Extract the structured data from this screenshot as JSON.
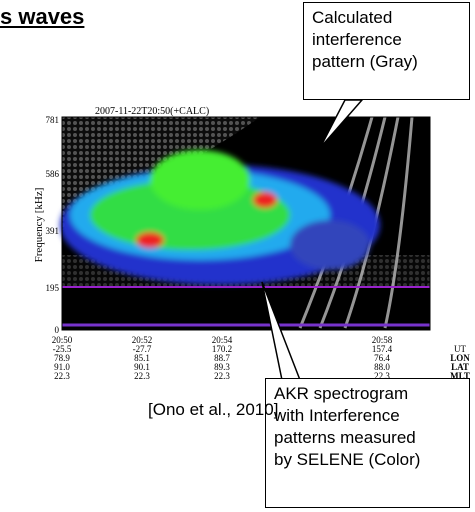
{
  "header": {
    "title": "s waves"
  },
  "callouts": [
    {
      "lines": [
        "Calculated",
        "interference",
        "pattern (Gray)"
      ]
    },
    {
      "lines": [
        "AKR spectrogram",
        "with Interference",
        "patterns measured",
        "by SELENE (Color)"
      ]
    }
  ],
  "plot": {
    "title": "2007-11-22T20:50(+CALC)",
    "y_label": "Frequency [kHz]",
    "y_ticks": [
      "781",
      "586",
      "391",
      "195",
      "0"
    ],
    "x_ticks": [
      [
        "20:50",
        "-25.5",
        "78.9",
        "91.0",
        "22.3"
      ],
      [
        "20:52",
        "-27.7",
        "85.1",
        "90.1",
        "22.3"
      ],
      [
        "20:54",
        "170.2",
        "88.7",
        "89.3",
        "22.3"
      ],
      [
        "20:58",
        "157.4",
        "76.4",
        "88.0",
        "22.3"
      ]
    ],
    "row_labels": [
      "UT",
      "LON",
      "LAT",
      "MLT"
    ]
  },
  "citation": "[Ono et al., 2010]"
}
